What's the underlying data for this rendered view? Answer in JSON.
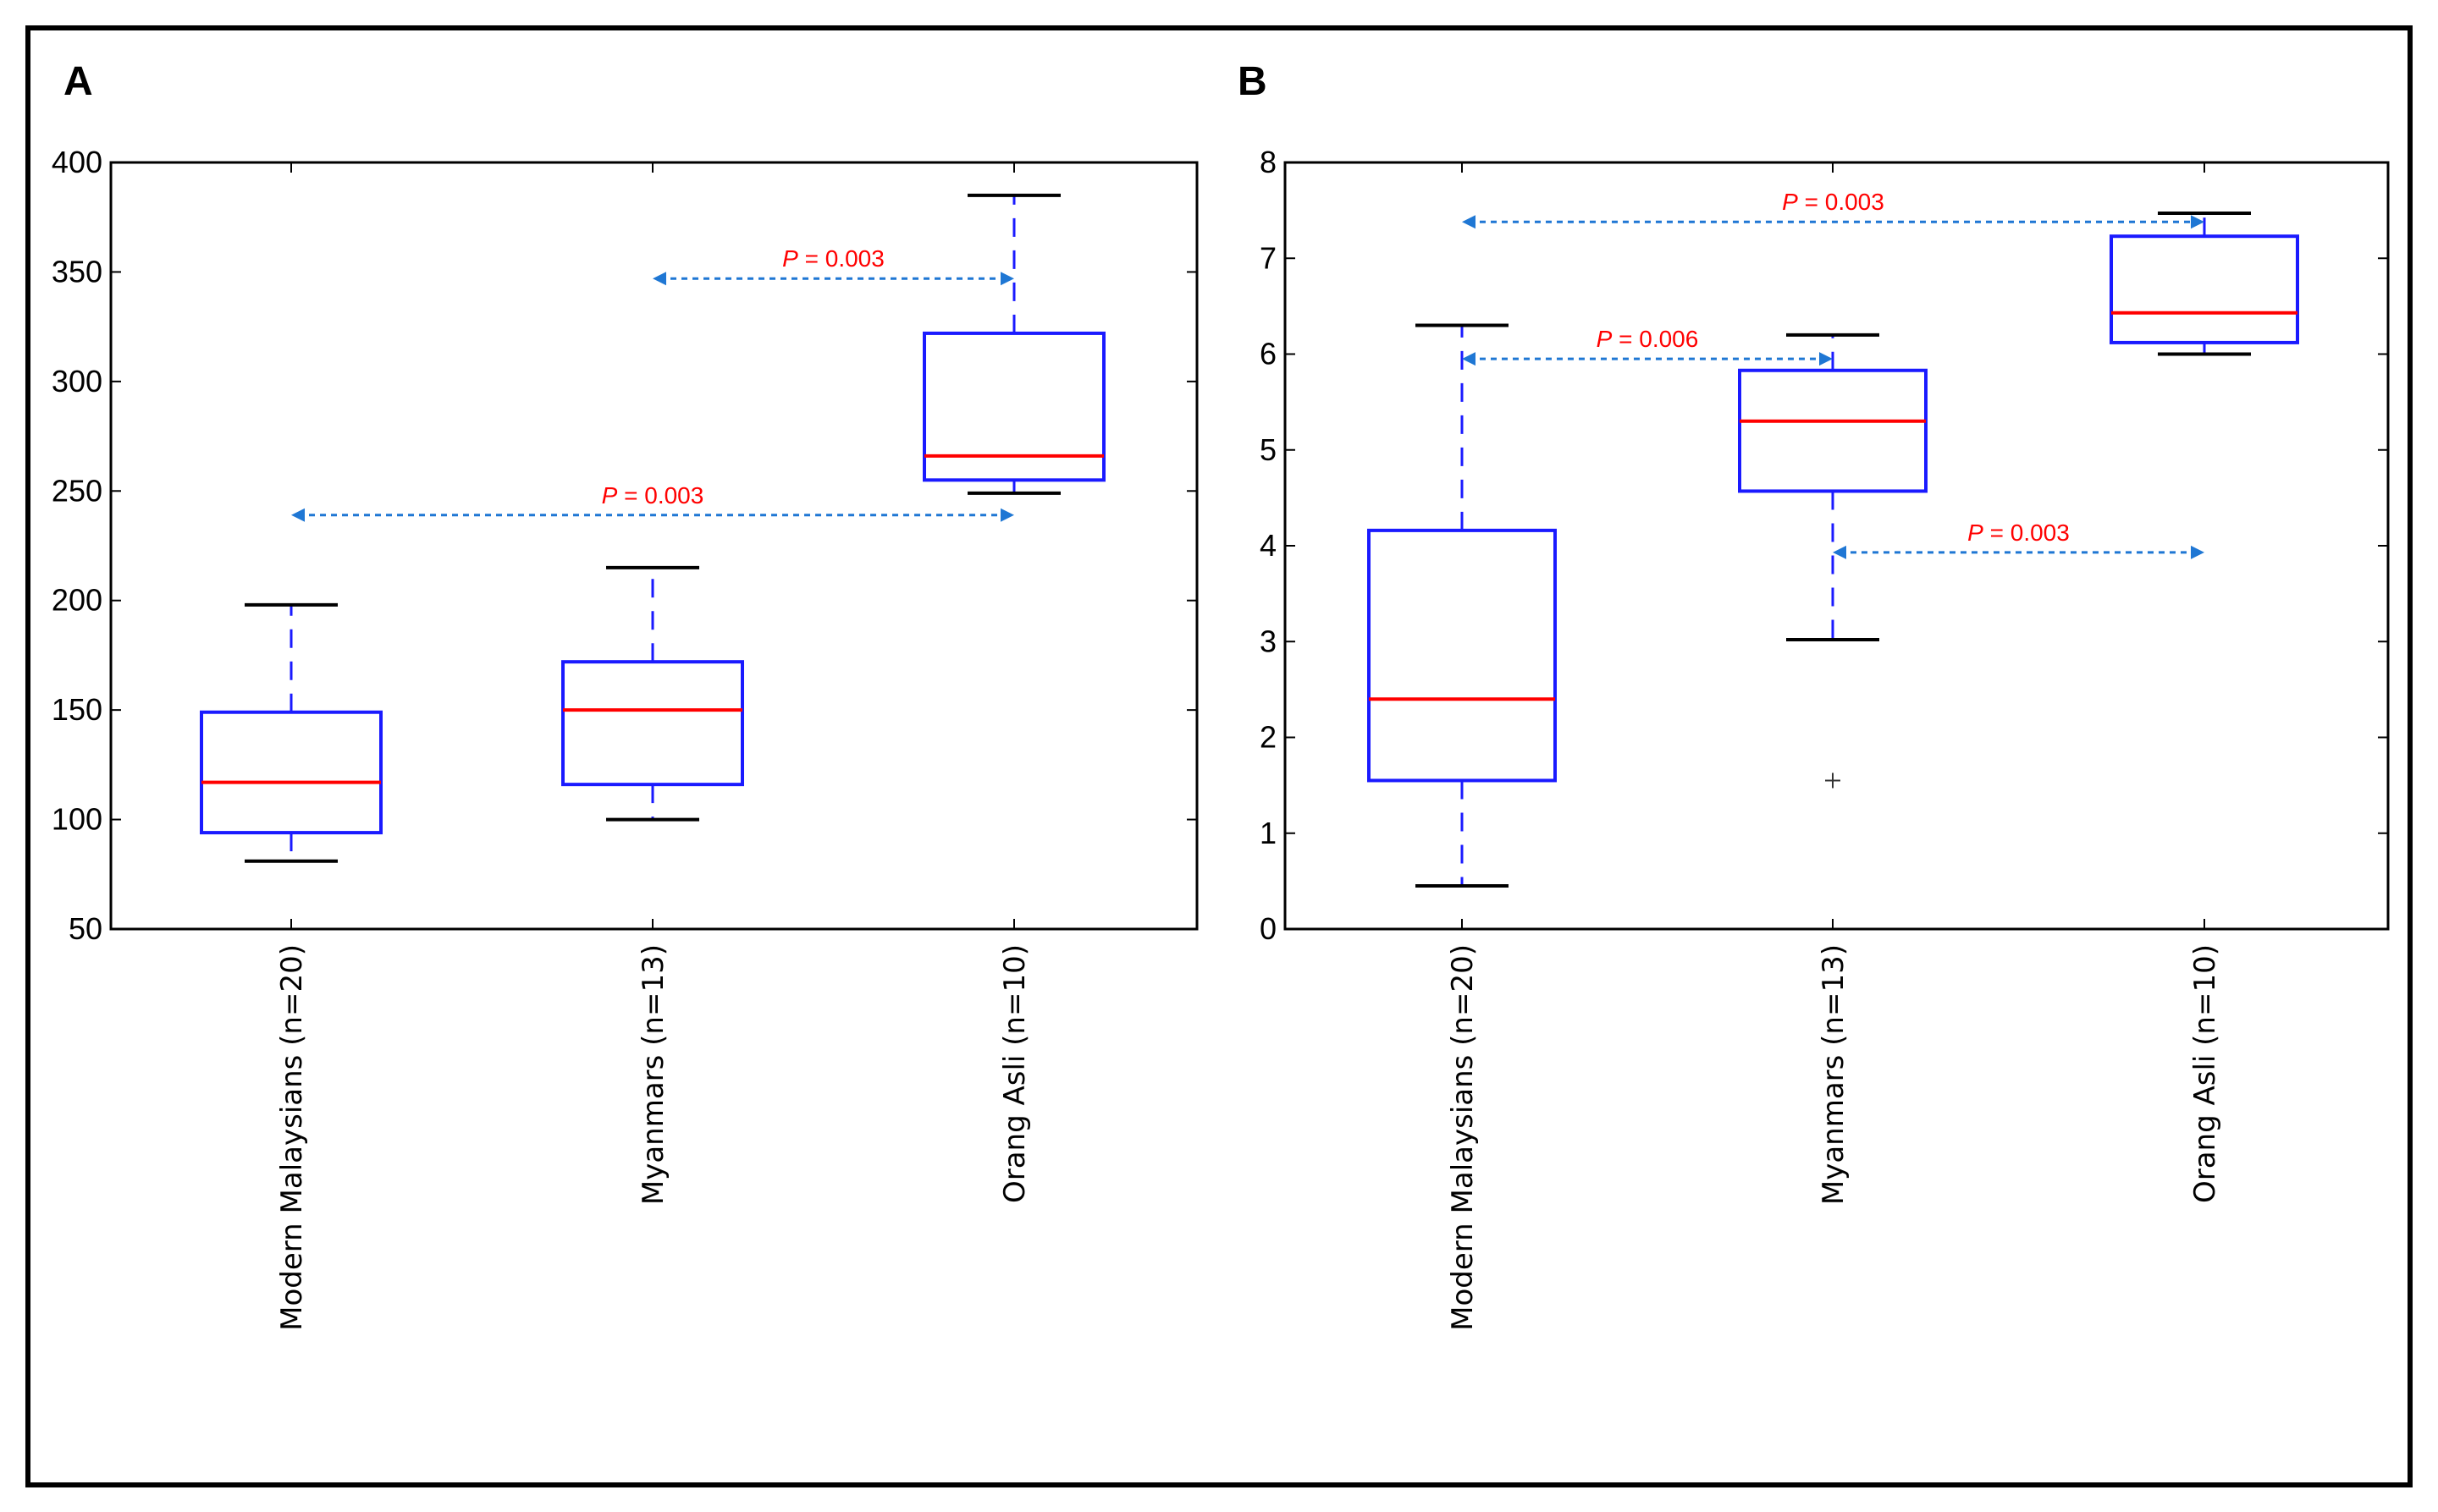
{
  "colors": {
    "box": "#1a1aff",
    "median": "#ff0000",
    "cap": "#000000",
    "arrow": "#1f77d4",
    "pval": "#ff0000"
  },
  "chart_data": [
    {
      "type": "box",
      "panel_label": "A",
      "title": "",
      "xlabel": "",
      "ylabel": "",
      "categories": [
        "Modern Malaysians (n=20)",
        "Myanmars (n=13)",
        "Orang Asli (n=10)"
      ],
      "ylim": [
        50,
        400
      ],
      "yticks": [
        50,
        100,
        150,
        200,
        250,
        300,
        350,
        400
      ],
      "grid": false,
      "boxes": [
        {
          "whisker_low": 81,
          "q1": 94,
          "median": 117,
          "q3": 149,
          "whisker_high": 198
        },
        {
          "whisker_low": 100,
          "q1": 116,
          "median": 150,
          "q3": 172,
          "whisker_high": 215
        },
        {
          "whisker_low": 249,
          "q1": 255,
          "median": 266,
          "q3": 322,
          "whisker_high": 385
        }
      ],
      "outliers": [],
      "annotations": [
        {
          "from": 1,
          "to": 2,
          "y": 347,
          "p_label": "P",
          "p_value": "= 0.003"
        },
        {
          "from": 0,
          "to": 2,
          "y": 239,
          "p_label": "P",
          "p_value": "= 0.003"
        }
      ]
    },
    {
      "type": "box",
      "panel_label": "B",
      "title": "",
      "xlabel": "",
      "ylabel": "",
      "categories": [
        "Modern Malaysians (n=20)",
        "Myanmars (n=13)",
        "Orang Asli (n=10)"
      ],
      "ylim": [
        0,
        8
      ],
      "yticks": [
        0,
        1,
        2,
        3,
        4,
        5,
        6,
        7,
        8
      ],
      "grid": false,
      "boxes": [
        {
          "whisker_low": 0.45,
          "q1": 1.55,
          "median": 2.4,
          "q3": 4.16,
          "whisker_high": 6.3
        },
        {
          "whisker_low": 3.02,
          "q1": 4.57,
          "median": 5.3,
          "q3": 5.83,
          "whisker_high": 6.2
        },
        {
          "whisker_low": 6.0,
          "q1": 6.12,
          "median": 6.43,
          "q3": 7.23,
          "whisker_high": 7.47
        }
      ],
      "outliers": [
        {
          "box": 1,
          "value": 1.55
        }
      ],
      "annotations": [
        {
          "from": 0,
          "to": 2,
          "y": 7.38,
          "p_label": "P",
          "p_value": "= 0.003"
        },
        {
          "from": 0,
          "to": 1,
          "y": 5.95,
          "p_label": "P",
          "p_value": "= 0.006"
        },
        {
          "from": 1,
          "to": 2,
          "y": 3.93,
          "p_label": "P",
          "p_value": "= 0.003"
        }
      ]
    }
  ]
}
